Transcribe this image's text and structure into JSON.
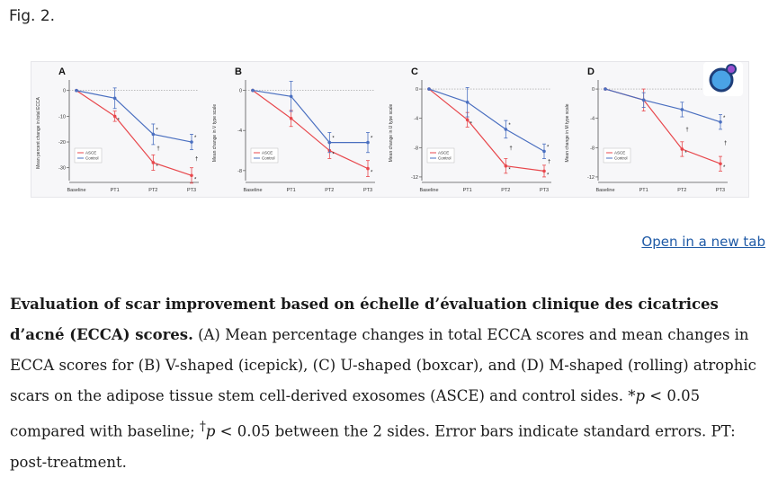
{
  "figure": {
    "label": "Fig. 2.",
    "open_link": "Open in a new tab",
    "caption": {
      "bold": "Evaluation of scar improvement based on échelle d’évaluation clinique des cicatrices d’acné (ECCA) scores.",
      "text_1": " (A) Mean percentage changes in total ECCA scores and mean changes in ECCA scores for (B) V-shaped (icepick), (C) U-shaped (boxcar), and (D) M-shaped (rolling) atrophic scars on the adipose tissue stem cell-derived exosomes (ASCE) and control sides. *",
      "p1": "p",
      "text_2": " < 0.05 compared with baseline; ",
      "dagger": "†",
      "p2": "p",
      "text_3": " < 0.05 between the 2 sides. Error bars indicate standard errors. PT: post-treatment."
    }
  },
  "colors": {
    "asce": "#e8474c",
    "control": "#4a6fc0",
    "grid": "#999999"
  },
  "chart_data": [
    {
      "panel": "A",
      "type": "line",
      "ylabel": "Mean percent change in total ECCA",
      "categories": [
        "Baseline",
        "PT1",
        "PT2",
        "PT3"
      ],
      "ylim": [
        -35,
        2
      ],
      "yticks": [
        0,
        -10,
        -20,
        -30
      ],
      "ytick_labels": [
        "0",
        "-10",
        "-20",
        "-30"
      ],
      "series": [
        {
          "name": "ASCE",
          "values": [
            0,
            -10,
            -28,
            -33
          ],
          "errors": [
            0,
            2,
            3,
            3
          ],
          "marks": [
            "",
            "*",
            "*",
            "*"
          ]
        },
        {
          "name": "Control",
          "values": [
            0,
            -3,
            -17,
            -20
          ],
          "errors": [
            0,
            4,
            4,
            3
          ],
          "marks": [
            "",
            "",
            "*",
            "*"
          ]
        }
      ],
      "between_marks": [
        "",
        "",
        "†",
        "†"
      ],
      "legend": [
        "ASCE",
        "Control"
      ]
    },
    {
      "panel": "B",
      "type": "line",
      "ylabel": "Mean change in V type scale",
      "categories": [
        "Baseline",
        "PT1",
        "PT2",
        "PT3"
      ],
      "ylim": [
        -9,
        0.5
      ],
      "yticks": [
        0,
        -4,
        -8
      ],
      "ytick_labels": [
        "0",
        "-4",
        "-8"
      ],
      "series": [
        {
          "name": "ASCE",
          "values": [
            0,
            -2.8,
            -6,
            -7.8
          ],
          "errors": [
            0,
            0.8,
            0.8,
            0.8
          ],
          "marks": [
            "",
            "",
            "*",
            "*"
          ]
        },
        {
          "name": "Control",
          "values": [
            0,
            -0.6,
            -5.2,
            -5.2
          ],
          "errors": [
            0,
            1.5,
            1,
            1
          ],
          "marks": [
            "",
            "",
            "*",
            "*"
          ]
        }
      ],
      "between_marks": [
        "",
        "",
        "",
        ""
      ],
      "legend": [
        "ASCE",
        "Control"
      ]
    },
    {
      "panel": "C",
      "type": "line",
      "ylabel": "Mean change in U type scale",
      "categories": [
        "Baseline",
        "PT1",
        "PT2",
        "PT3"
      ],
      "ylim": [
        -12.5,
        0.5
      ],
      "yticks": [
        0,
        -4,
        -8,
        -12
      ],
      "ytick_labels": [
        "0",
        "-4",
        "-8",
        "-12"
      ],
      "series": [
        {
          "name": "ASCE",
          "values": [
            0,
            -4.2,
            -10.5,
            -11.2
          ],
          "errors": [
            0,
            1,
            1,
            0.8
          ],
          "marks": [
            "",
            "*",
            "*",
            "*"
          ]
        },
        {
          "name": "Control",
          "values": [
            0,
            -1.8,
            -5.5,
            -8.5
          ],
          "errors": [
            0,
            2,
            1.2,
            1
          ],
          "marks": [
            "",
            "",
            "*",
            "*"
          ]
        }
      ],
      "between_marks": [
        "",
        "",
        "†",
        "†"
      ],
      "legend": [
        "ASCE",
        "Control"
      ]
    },
    {
      "panel": "D",
      "type": "line",
      "ylabel": "Mean change in M type scale",
      "categories": [
        "Baseline",
        "PT1",
        "PT2",
        "PT3"
      ],
      "ylim": [
        -12.5,
        0.5
      ],
      "yticks": [
        0,
        -4,
        -8,
        -12
      ],
      "ytick_labels": [
        "0",
        "-4",
        "-8",
        "-12"
      ],
      "series": [
        {
          "name": "ASCE",
          "values": [
            0,
            -1.5,
            -8.2,
            -10.2
          ],
          "errors": [
            0,
            1.5,
            1,
            1
          ],
          "marks": [
            "",
            "",
            "*",
            "*"
          ]
        },
        {
          "name": "Control",
          "values": [
            0,
            -1.5,
            -2.8,
            -4.5
          ],
          "errors": [
            0,
            1,
            1,
            1
          ],
          "marks": [
            "",
            "",
            "",
            "*"
          ]
        }
      ],
      "between_marks": [
        "",
        "",
        "†",
        "†"
      ],
      "legend": [
        "ASCE",
        "Control"
      ]
    }
  ]
}
